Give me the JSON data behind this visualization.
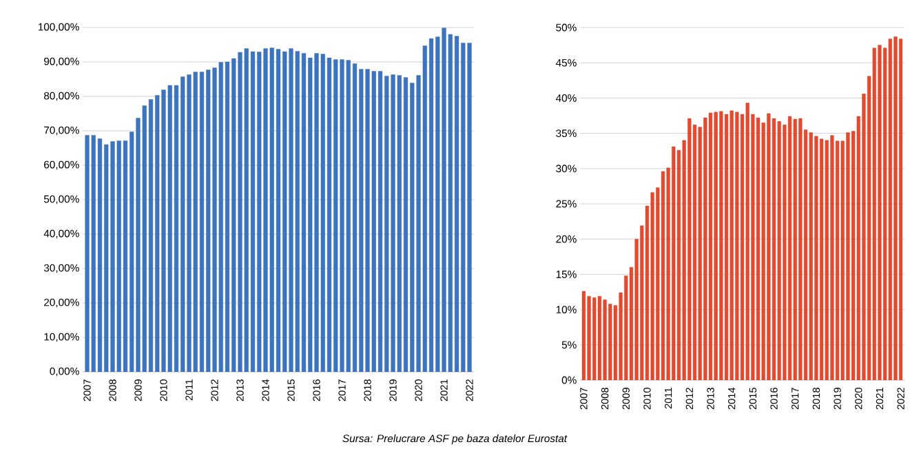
{
  "chart_data": [
    {
      "type": "bar",
      "categories": [
        "2007",
        null,
        null,
        null,
        "2008",
        null,
        null,
        null,
        "2009",
        null,
        null,
        null,
        "2010",
        null,
        null,
        null,
        "2011",
        null,
        null,
        null,
        "2012",
        null,
        null,
        null,
        "2013",
        null,
        null,
        null,
        "2014",
        null,
        null,
        null,
        "2015",
        null,
        null,
        null,
        "2016",
        null,
        null,
        null,
        "2017",
        null,
        null,
        null,
        "2018",
        null,
        null,
        null,
        "2019",
        null,
        null,
        null,
        "2020",
        null,
        null,
        null,
        "2021",
        null,
        null,
        null,
        "2022"
      ],
      "values": [
        68.7,
        68.7,
        67.7,
        66.0,
        66.9,
        67.1,
        67.1,
        69.7,
        73.7,
        77.3,
        79.1,
        80.3,
        81.9,
        83.2,
        83.2,
        85.7,
        86.3,
        87.1,
        87.1,
        87.7,
        88.3,
        89.9,
        90.0,
        91.0,
        92.8,
        93.9,
        93.0,
        92.9,
        93.9,
        94.1,
        93.7,
        93.0,
        93.9,
        93.1,
        92.5,
        91.2,
        92.5,
        92.3,
        91.2,
        90.7,
        90.7,
        90.5,
        89.5,
        87.9,
        87.9,
        87.3,
        87.3,
        85.9,
        86.3,
        86.1,
        85.5,
        83.9,
        86.1,
        94.7,
        96.8,
        97.3,
        99.9,
        98.0,
        97.5,
        95.5,
        95.5
      ],
      "color": "#3b74c0",
      "ylim": [
        0,
        100
      ],
      "yticks": [
        {
          "value": 0,
          "label": "0,00%"
        },
        {
          "value": 10,
          "label": "10,00%"
        },
        {
          "value": 20,
          "label": "20,00%"
        },
        {
          "value": 30,
          "label": "30,00%"
        },
        {
          "value": 40,
          "label": "40,00%"
        },
        {
          "value": 50,
          "label": "50,00%"
        },
        {
          "value": 60,
          "label": "60,00%"
        },
        {
          "value": 70,
          "label": "70,00%"
        },
        {
          "value": 80,
          "label": "80,00%"
        },
        {
          "value": 90,
          "label": "90,00%"
        },
        {
          "value": 100,
          "label": "100,00%"
        }
      ],
      "grid": "y",
      "annotations": [
        "Sursa: Prelucrare ASF pe baza datelor Eurostat"
      ]
    },
    {
      "type": "bar",
      "categories": [
        "2007",
        null,
        null,
        null,
        "2008",
        null,
        null,
        null,
        "2009",
        null,
        null,
        null,
        "2010",
        null,
        null,
        null,
        "2011",
        null,
        null,
        null,
        "2012",
        null,
        null,
        null,
        "2013",
        null,
        null,
        null,
        "2014",
        null,
        null,
        null,
        "2015",
        null,
        null,
        null,
        "2016",
        null,
        null,
        null,
        "2017",
        null,
        null,
        null,
        "2018",
        null,
        null,
        null,
        "2019",
        null,
        null,
        null,
        "2020",
        null,
        null,
        null,
        "2021",
        null,
        null,
        null,
        "2022"
      ],
      "values": [
        12.6,
        11.9,
        11.7,
        11.9,
        11.4,
        10.8,
        10.6,
        12.4,
        14.8,
        16.0,
        20.0,
        21.9,
        24.7,
        26.6,
        27.3,
        29.6,
        30.1,
        33.1,
        32.6,
        34.0,
        37.1,
        36.2,
        35.9,
        37.2,
        37.9,
        38.0,
        38.1,
        37.7,
        38.2,
        38.0,
        37.7,
        39.3,
        37.7,
        37.2,
        36.5,
        37.8,
        37.1,
        36.7,
        36.2,
        37.4,
        37.0,
        37.1,
        35.5,
        35.1,
        34.6,
        34.2,
        34.0,
        34.7,
        33.9,
        33.9,
        35.1,
        35.3,
        37.4,
        40.6,
        43.1,
        47.1,
        47.5,
        47.1,
        48.4,
        48.7,
        48.4
      ],
      "color": "#e8482c",
      "ylim": [
        0,
        50
      ],
      "yticks": [
        {
          "value": 0,
          "label": "0%"
        },
        {
          "value": 5,
          "label": "5%"
        },
        {
          "value": 10,
          "label": "10%"
        },
        {
          "value": 15,
          "label": "15%"
        },
        {
          "value": 20,
          "label": "20%"
        },
        {
          "value": 25,
          "label": "25%"
        },
        {
          "value": 30,
          "label": "30%"
        },
        {
          "value": 35,
          "label": "35%"
        },
        {
          "value": 40,
          "label": "40%"
        },
        {
          "value": 45,
          "label": "45%"
        },
        {
          "value": 50,
          "label": "50%"
        }
      ],
      "grid": "y"
    }
  ]
}
